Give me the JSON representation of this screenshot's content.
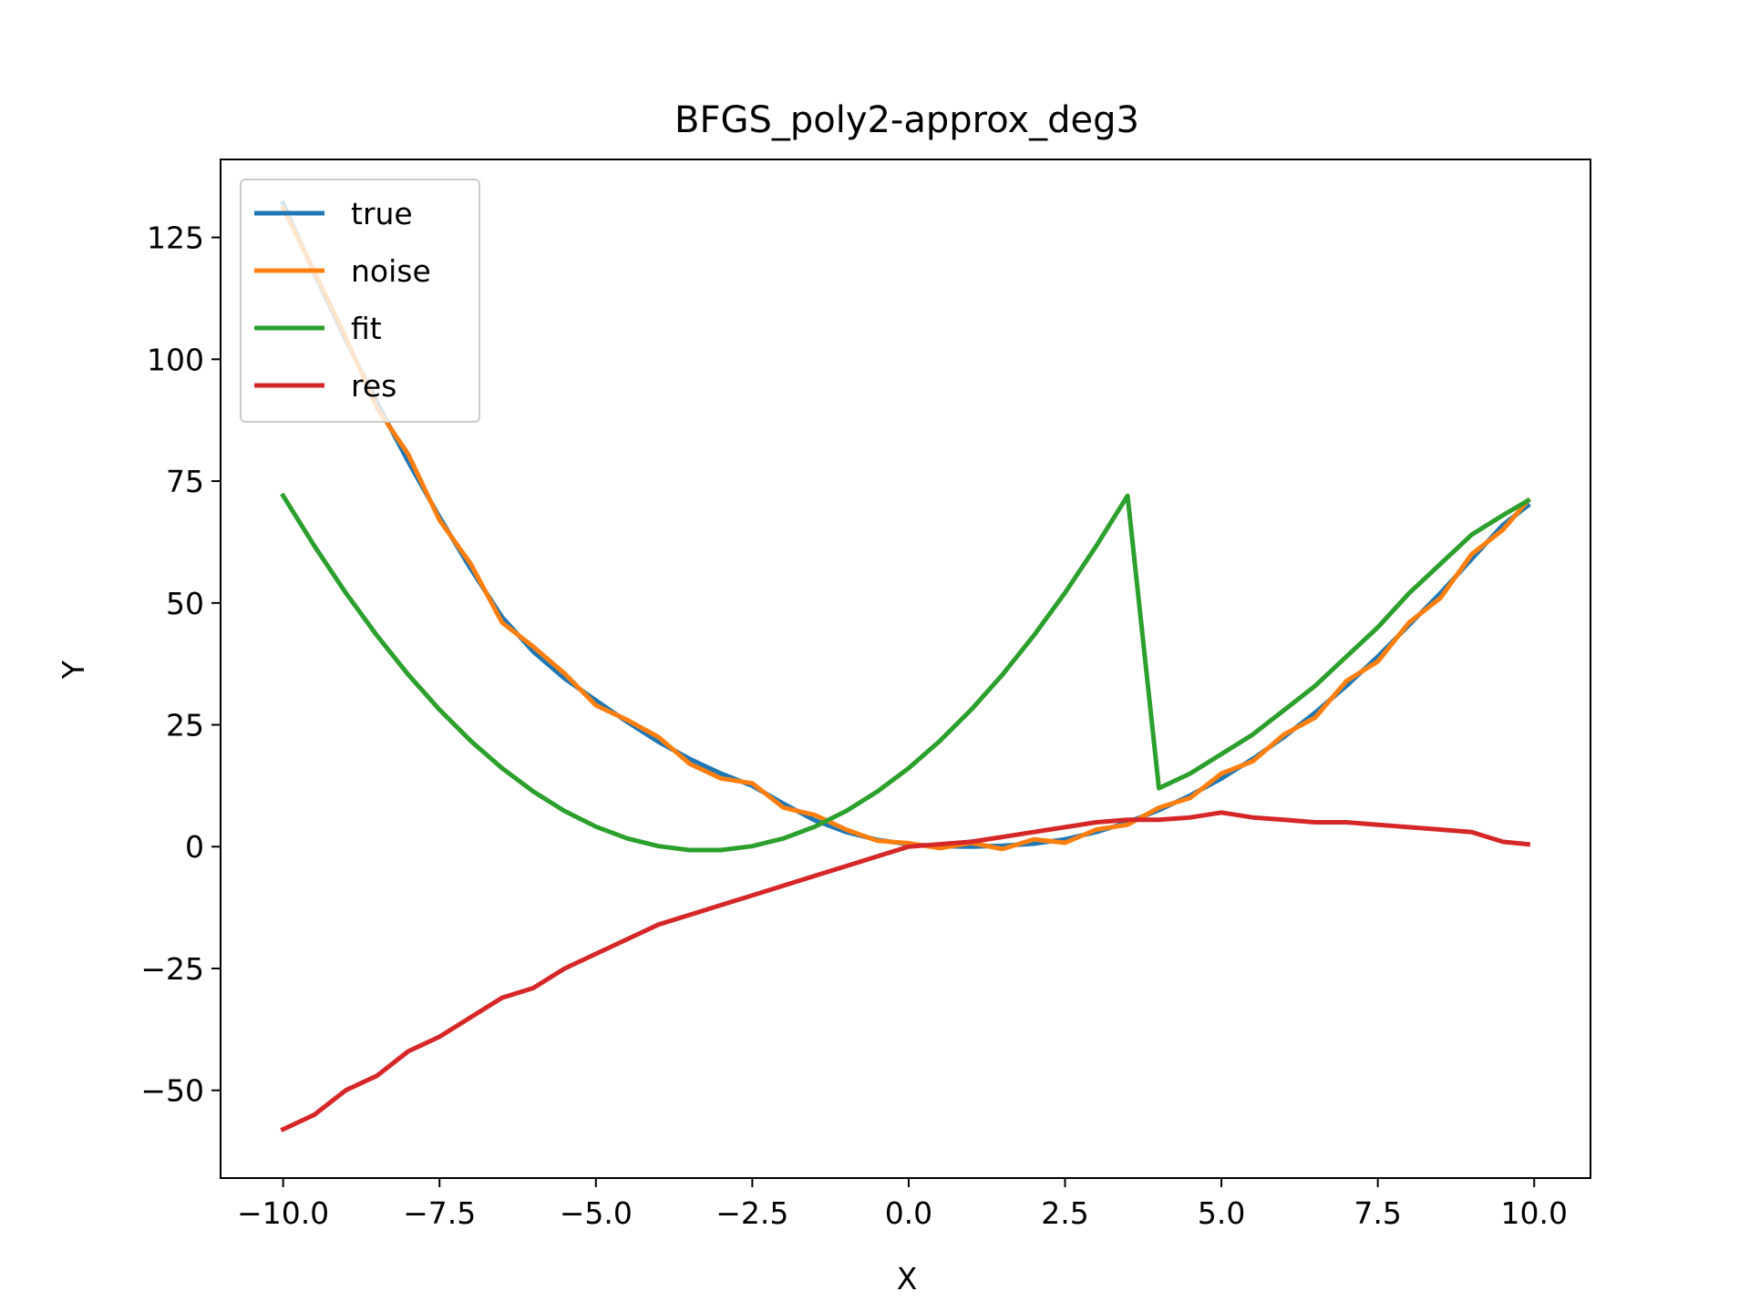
{
  "chart_data": {
    "type": "line",
    "title": "BFGS_poly2-approx_deg3",
    "xlabel": "X",
    "ylabel": "Y",
    "xlim": [
      -11.0,
      10.9
    ],
    "ylim": [
      -68,
      141
    ],
    "xticks": [
      -10.0,
      -7.5,
      -5.0,
      -2.5,
      0.0,
      2.5,
      5.0,
      7.5,
      10.0
    ],
    "xtick_labels": [
      "−10.0",
      "−7.5",
      "−5.0",
      "−2.5",
      "0.0",
      "2.5",
      "5.0",
      "7.5",
      "10.0"
    ],
    "yticks": [
      -50,
      -25,
      0,
      25,
      50,
      75,
      100,
      125
    ],
    "ytick_labels": [
      "−50",
      "−25",
      "0",
      "25",
      "50",
      "75",
      "100",
      "125"
    ],
    "legend_position": "top-left",
    "grid": false,
    "x": [
      -10.0,
      -9.5,
      -9.0,
      -8.5,
      -8.0,
      -7.5,
      -7.0,
      -6.5,
      -6.0,
      -5.5,
      -5.0,
      -4.5,
      -4.0,
      -3.5,
      -3.0,
      -2.5,
      -2.0,
      -1.5,
      -1.0,
      -0.5,
      0.0,
      0.5,
      1.0,
      1.5,
      2.0,
      2.5,
      3.0,
      3.5,
      4.0,
      4.5,
      5.0,
      5.5,
      6.0,
      6.5,
      7.0,
      7.5,
      8.0,
      8.5,
      9.0,
      9.5,
      9.9
    ],
    "series": [
      {
        "name": "true",
        "color": "#1f77b4",
        "values": [
          132,
          117.6,
          104,
          91.1,
          79,
          67.6,
          57,
          47.1,
          40,
          34.5,
          30,
          25.6,
          21.5,
          18,
          15,
          12.5,
          8.8,
          5.4,
          3,
          1.4,
          0.5,
          0.1,
          0,
          0.2,
          0.6,
          1.5,
          3,
          5,
          7.5,
          10.5,
          14,
          18,
          22.5,
          27.5,
          33,
          39,
          45.5,
          52,
          59,
          66,
          70
        ]
      },
      {
        "name": "noise",
        "color": "#ff7f0e",
        "values": [
          131,
          118,
          104.5,
          90,
          80.5,
          67,
          58,
          46,
          41,
          35.5,
          29,
          26,
          22.5,
          17,
          14,
          13,
          8,
          6.5,
          3.5,
          1.2,
          0.7,
          -0.3,
          0.8,
          -0.5,
          1.5,
          0.8,
          3.5,
          4.5,
          8,
          10,
          15,
          17.5,
          23,
          26.5,
          34,
          38,
          46,
          51,
          60,
          65,
          71
        ]
      },
      {
        "name": "fit",
        "color": "#2ca02c",
        "values": [
          72,
          61.7,
          52.1,
          43.3,
          35.3,
          28.1,
          21.7,
          16.1,
          11.3,
          7.3,
          4.1,
          1.7,
          0.1,
          -0.7,
          -0.7,
          0.1,
          1.7,
          4.1,
          7.3,
          11.3,
          16.1,
          21.7,
          28.1,
          35.3,
          43.3,
          52.1,
          61.7,
          72,
          12,
          15,
          19,
          23,
          28,
          33,
          39,
          45,
          52,
          58,
          64,
          68,
          71
        ]
      },
      {
        "name": "res",
        "color": "#d62728",
        "values": [
          -58,
          -55,
          -50,
          -47,
          -42,
          -39,
          -35,
          -31,
          -29,
          -25,
          -22,
          -19,
          -16,
          -14,
          -12,
          -10,
          -8,
          -6,
          -4,
          -2,
          0,
          0.5,
          1,
          2,
          3,
          4,
          5,
          5.5,
          5.5,
          6,
          7,
          6,
          5.5,
          5,
          5,
          4.5,
          4,
          3.5,
          3,
          1,
          0.5
        ]
      }
    ]
  }
}
